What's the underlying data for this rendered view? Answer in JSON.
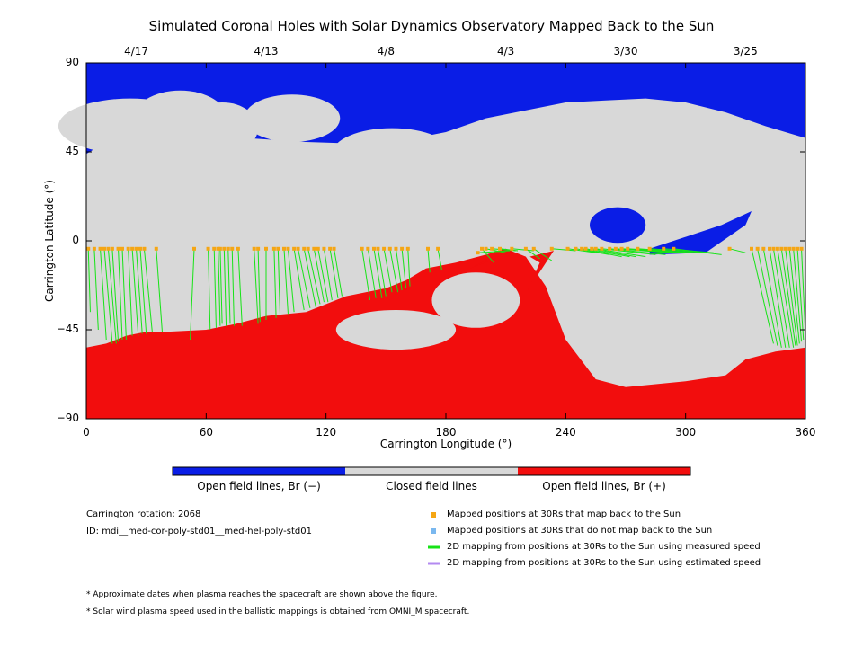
{
  "title": "Simulated Coronal Holes with Solar Dynamics Observatory Mapped Back to the Sun",
  "dates": [
    {
      "label": "4/17",
      "lon": 25
    },
    {
      "label": "4/13",
      "lon": 90
    },
    {
      "label": "4/8",
      "lon": 150
    },
    {
      "label": "4/3",
      "lon": 210
    },
    {
      "label": "3/30",
      "lon": 270
    },
    {
      "label": "3/25",
      "lon": 330
    }
  ],
  "colors": {
    "open_negative": "#0a1de6",
    "closed": "#d8d8d8",
    "open_positive": "#f20d0d",
    "mapped_point": "#f5a614",
    "unmapped_point": "#7ab8ef",
    "measured_line": "#17e317",
    "estimated_line": "#b38af0"
  },
  "colorbar": {
    "labels": [
      "Open field lines, Br (−)",
      "Closed field lines",
      "Open field lines, Br (+)"
    ]
  },
  "info": {
    "rotation": "Carrington rotation: 2068",
    "id": "ID: mdi__med-cor-poly-std01__med-hel-poly-std01"
  },
  "legend": [
    {
      "text": "Mapped positions at 30Rs that map back to the Sun",
      "kind": "square",
      "color": "#f5a614"
    },
    {
      "text": "Mapped positions at 30Rs that do not map back to the Sun",
      "kind": "square",
      "color": "#7ab8ef"
    },
    {
      "text": "2D mapping from positions at 30Rs to the Sun using measured speed",
      "kind": "line",
      "color": "#17e317"
    },
    {
      "text": "2D mapping from positions at 30Rs to the Sun using estimated speed",
      "kind": "line",
      "color": "#b38af0"
    }
  ],
  "footnotes": [
    "* Approximate dates when plasma reaches the spacecraft are shown above the figure.",
    "* Solar wind plasma speed used in the ballistic mappings is obtained from OMNI_M spacecraft."
  ],
  "chart_data": {
    "type": "heatmap",
    "title": "Simulated Coronal Holes with Solar Dynamics Observatory Mapped Back to the Sun",
    "xlabel": "Carrington Longitude (°)",
    "ylabel": "Carrington Latitude (°)",
    "xlim": [
      0,
      360
    ],
    "ylim": [
      -90,
      90
    ],
    "xticks": [
      0,
      60,
      120,
      180,
      240,
      300,
      360
    ],
    "yticks": [
      90,
      45,
      0,
      -45,
      -90
    ],
    "ytick_labels": [
      "90",
      "45",
      "0",
      "−45",
      "−90"
    ],
    "regions": {
      "north_open_negative_boundary": [
        [
          0,
          44
        ],
        [
          10,
          50
        ],
        [
          20,
          52
        ],
        [
          40,
          50
        ],
        [
          60,
          50
        ],
        [
          80,
          52
        ],
        [
          110,
          50
        ],
        [
          140,
          49
        ],
        [
          160,
          51
        ],
        [
          180,
          55
        ],
        [
          200,
          62
        ],
        [
          240,
          70
        ],
        [
          260,
          71
        ],
        [
          280,
          72
        ],
        [
          300,
          70
        ],
        [
          320,
          65
        ],
        [
          340,
          58
        ],
        [
          360,
          52
        ]
      ],
      "south_open_positive_boundary": [
        [
          0,
          -54
        ],
        [
          10,
          -52
        ],
        [
          20,
          -48
        ],
        [
          30,
          -46
        ],
        [
          40,
          -46
        ],
        [
          60,
          -45
        ],
        [
          75,
          -42
        ],
        [
          90,
          -38
        ],
        [
          110,
          -36
        ],
        [
          130,
          -28
        ],
        [
          150,
          -24
        ],
        [
          160,
          -20
        ],
        [
          170,
          -14
        ],
        [
          185,
          -11
        ],
        [
          200,
          -7
        ],
        [
          210,
          -4
        ],
        [
          220,
          -8
        ],
        [
          230,
          -23
        ],
        [
          240,
          -50
        ],
        [
          255,
          -70
        ],
        [
          270,
          -74
        ],
        [
          300,
          -71
        ],
        [
          320,
          -68
        ],
        [
          330,
          -60
        ],
        [
          345,
          -56
        ],
        [
          360,
          -54
        ]
      ]
    },
    "mapping": [
      [
        1,
        -4,
        2,
        -36
      ],
      [
        4,
        -4,
        6,
        -45
      ],
      [
        7,
        -4,
        10,
        -50
      ],
      [
        9,
        -4,
        13,
        -52
      ],
      [
        11,
        -4,
        15,
        -52
      ],
      [
        13,
        -4,
        16,
        -51
      ],
      [
        16,
        -4,
        18,
        -50
      ],
      [
        18,
        -4,
        20,
        -50
      ],
      [
        21,
        -4,
        23,
        -48
      ],
      [
        23,
        -4,
        26,
        -48
      ],
      [
        25,
        -4,
        28,
        -47
      ],
      [
        27,
        -4,
        30,
        -47
      ],
      [
        29,
        -4,
        33,
        -46
      ],
      [
        35,
        -4,
        38,
        -46
      ],
      [
        54,
        -4,
        52,
        -50
      ],
      [
        61,
        -4,
        62,
        -45
      ],
      [
        64,
        -4,
        65,
        -44
      ],
      [
        66,
        -4,
        67,
        -43
      ],
      [
        67,
        -4,
        68,
        -42
      ],
      [
        69,
        -4,
        70,
        -43
      ],
      [
        71,
        -4,
        72,
        -42
      ],
      [
        73,
        -4,
        74,
        -43
      ],
      [
        76,
        -4,
        78,
        -43
      ],
      [
        84,
        -4,
        86,
        -42
      ],
      [
        86,
        -4,
        87,
        -41
      ],
      [
        90,
        -4,
        90,
        -40
      ],
      [
        94,
        -4,
        95,
        -39
      ],
      [
        96,
        -4,
        97,
        -38
      ],
      [
        99,
        -4,
        101,
        -37
      ],
      [
        101,
        -4,
        104,
        -36
      ],
      [
        104,
        -4,
        109,
        -35
      ],
      [
        106,
        -4,
        112,
        -34
      ],
      [
        109,
        -4,
        115,
        -34
      ],
      [
        111,
        -4,
        117,
        -32
      ],
      [
        114,
        -4,
        119,
        -31
      ],
      [
        116,
        -4,
        121,
        -31
      ],
      [
        119,
        -4,
        123,
        -30
      ],
      [
        122,
        -4,
        126,
        -29
      ],
      [
        124,
        -4,
        128,
        -28
      ],
      [
        138,
        -4,
        142,
        -30
      ],
      [
        141,
        -4,
        145,
        -29
      ],
      [
        144,
        -4,
        148,
        -29
      ],
      [
        146,
        -4,
        150,
        -28
      ],
      [
        149,
        -4,
        153,
        -26
      ],
      [
        152,
        -4,
        156,
        -26
      ],
      [
        155,
        -4,
        158,
        -25
      ],
      [
        158,
        -4,
        160,
        -24
      ],
      [
        161,
        -4,
        162,
        -23
      ],
      [
        171,
        -4,
        172,
        -16
      ],
      [
        176,
        -4,
        178,
        -15
      ],
      [
        196,
        -6,
        212,
        -5
      ],
      [
        198,
        -4,
        204,
        -11
      ],
      [
        200,
        -4,
        210,
        -6
      ],
      [
        203,
        -4,
        215,
        -5
      ],
      [
        207,
        -4,
        216,
        -5
      ],
      [
        213,
        -4,
        224,
        -5
      ],
      [
        220,
        -4,
        227,
        -9
      ],
      [
        224,
        -4,
        233,
        -10
      ],
      [
        233,
        -4,
        245,
        -5
      ],
      [
        241,
        -4,
        255,
        -6
      ],
      [
        245,
        -4,
        262,
        -7
      ],
      [
        248,
        -4,
        268,
        -8
      ],
      [
        250,
        -4,
        272,
        -8
      ],
      [
        253,
        -4,
        275,
        -8
      ],
      [
        255,
        -4,
        280,
        -8
      ],
      [
        258,
        -4,
        285,
        -7
      ],
      [
        262,
        -4,
        290,
        -7
      ],
      [
        265,
        -4,
        292,
        -6
      ],
      [
        268,
        -4,
        296,
        -6
      ],
      [
        271,
        -4,
        300,
        -6
      ],
      [
        276,
        -4,
        304,
        -6
      ],
      [
        282,
        -4,
        310,
        -6
      ],
      [
        289,
        -4,
        314,
        -6
      ],
      [
        294,
        -4,
        318,
        -7
      ],
      [
        322,
        -4,
        330,
        -6
      ],
      [
        333,
        -4,
        344,
        -52
      ],
      [
        336,
        -4,
        346,
        -53
      ],
      [
        339,
        -4,
        348,
        -54
      ],
      [
        342,
        -4,
        350,
        -54
      ],
      [
        344,
        -4,
        352,
        -54
      ],
      [
        346,
        -4,
        354,
        -54
      ],
      [
        348,
        -4,
        355,
        -53
      ],
      [
        350,
        -4,
        356,
        -53
      ],
      [
        352,
        -4,
        357,
        -52
      ],
      [
        354,
        -4,
        358,
        -51
      ],
      [
        356,
        -4,
        359,
        -50
      ],
      [
        358,
        -4,
        360,
        -48
      ]
    ]
  }
}
